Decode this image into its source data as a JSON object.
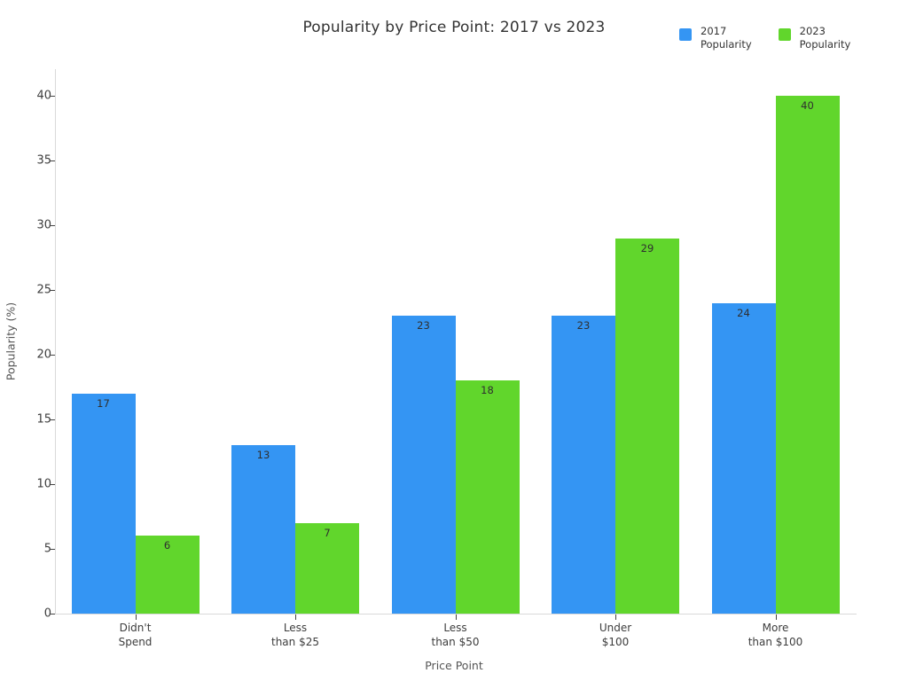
{
  "title": "Popularity by Price Point: 2017 vs 2023",
  "chart_data": {
    "type": "bar",
    "title": "Popularity by Price Point: 2017 vs 2023",
    "xlabel": "Price Point",
    "ylabel": "Popularity (%)",
    "categories": [
      "Didn't\nSpend",
      "Less\nthan $25",
      "Less\nthan $50",
      "Under\n$100",
      "More\nthan $100"
    ],
    "series": [
      {
        "name": "2017 Popularity",
        "legend_label": "2017\nPopularity",
        "color": "#3495f3",
        "values": [
          17,
          13,
          23,
          23,
          24
        ]
      },
      {
        "name": "2023 Popularity",
        "legend_label": "2023\nPopularity",
        "color": "#61d62c",
        "values": [
          6,
          7,
          18,
          29,
          40
        ]
      }
    ],
    "yticks": [
      0,
      5,
      10,
      15,
      20,
      25,
      30,
      35,
      40
    ],
    "ylim": [
      0,
      42
    ],
    "grid": false,
    "legend_position": "top-right",
    "bar_value_labels": true,
    "background_color": "#ffffff",
    "spine_color": "#d9d9d9"
  }
}
